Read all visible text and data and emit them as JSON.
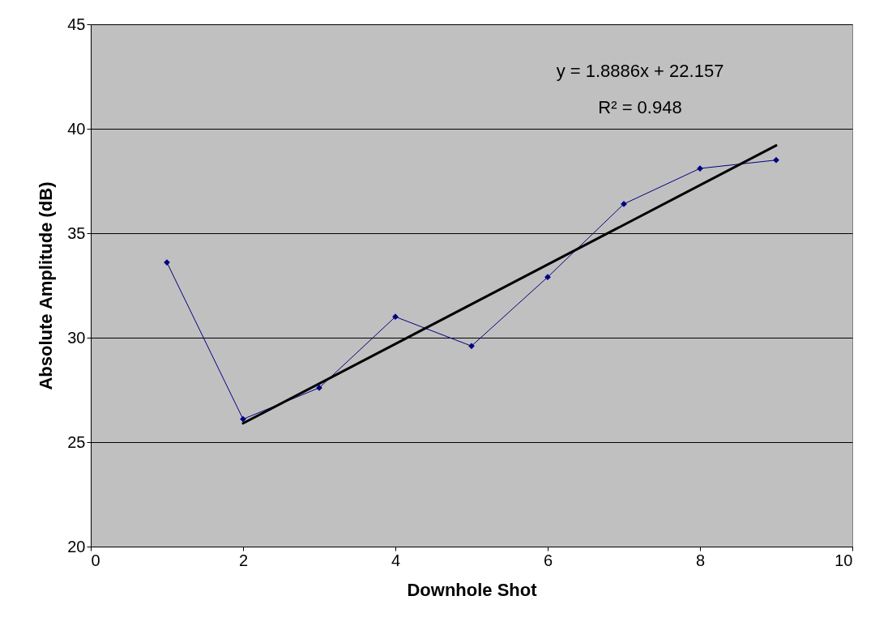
{
  "chart_data": {
    "type": "line",
    "xlabel": "Downhole Shot",
    "ylabel": "Absolute Amplitude (dB)",
    "annotations": [
      "y = 1.8886x + 22.157",
      "R² = 0.948"
    ],
    "x": [
      1,
      2,
      3,
      4,
      5,
      6,
      7,
      8,
      9
    ],
    "series": [
      {
        "color": "#000080",
        "values": [
          33.6,
          26.1,
          27.6,
          31.0,
          29.6,
          32.9,
          36.4,
          38.1,
          38.5
        ],
        "marker": "diamond"
      },
      {
        "type": "line",
        "color": "#000000",
        "x": [
          2,
          9
        ],
        "values": [
          25.9,
          39.2
        ],
        "marker": "none"
      }
    ],
    "xlim": [
      0,
      10
    ],
    "xticks": [
      0,
      2,
      4,
      6,
      8,
      10
    ],
    "ylim": [
      20,
      45
    ],
    "yticks": [
      20,
      25,
      30,
      35,
      40,
      45
    ],
    "grid": "y",
    "line_style": "solid"
  }
}
